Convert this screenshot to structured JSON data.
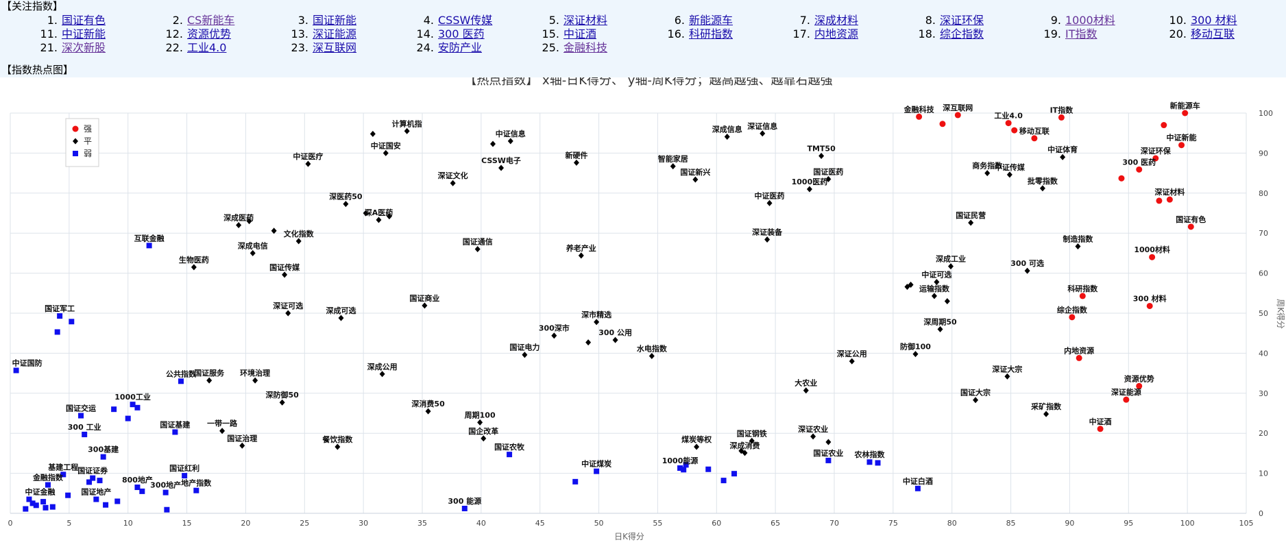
{
  "header": {
    "focus_title": "【关注指数】",
    "heat_title": "【指数热点图】"
  },
  "focus_list": [
    {
      "num": "1.",
      "name": "国证有色"
    },
    {
      "num": "2.",
      "name": "CS新能车",
      "visited": true
    },
    {
      "num": "3.",
      "name": "国证新能"
    },
    {
      "num": "4.",
      "name": "CSSW传媒"
    },
    {
      "num": "5.",
      "name": "深证材料"
    },
    {
      "num": "6.",
      "name": "新能源车"
    },
    {
      "num": "7.",
      "name": "深成材料"
    },
    {
      "num": "8.",
      "name": "深证环保"
    },
    {
      "num": "9.",
      "name": "1000材料",
      "visited": true
    },
    {
      "num": "10.",
      "name": "300 材料"
    },
    {
      "num": "11.",
      "name": "中证新能"
    },
    {
      "num": "12.",
      "name": "资源优势"
    },
    {
      "num": "13.",
      "name": "深证能源"
    },
    {
      "num": "14.",
      "name": "300 医药"
    },
    {
      "num": "15.",
      "name": "中证酒"
    },
    {
      "num": "16.",
      "name": "科研指数"
    },
    {
      "num": "17.",
      "name": "内地资源"
    },
    {
      "num": "18.",
      "name": "综企指数"
    },
    {
      "num": "19.",
      "name": "IT指数",
      "visited": true
    },
    {
      "num": "20.",
      "name": "移动互联"
    },
    {
      "num": "21.",
      "name": "深次新股",
      "visited": true
    },
    {
      "num": "22.",
      "name": "工业4.0"
    },
    {
      "num": "23.",
      "name": "深互联网"
    },
    {
      "num": "24.",
      "name": "安防产业"
    },
    {
      "num": "25.",
      "name": "金融科技",
      "visited": true
    }
  ],
  "chart_data": {
    "type": "scatter",
    "title": "【热点指数】 x轴-日K得分、 y轴-周K得分；越高越强、越靠右越强",
    "xlabel": "日K得分",
    "ylabel": "周K得分",
    "xlim": [
      0,
      105
    ],
    "ylim": [
      0,
      100
    ],
    "xticks": [
      0,
      5,
      10,
      15,
      20,
      25,
      30,
      35,
      40,
      45,
      50,
      55,
      60,
      65,
      70,
      75,
      80,
      85,
      90,
      95,
      100,
      105
    ],
    "yticks": [
      0,
      10,
      20,
      30,
      40,
      50,
      60,
      70,
      80,
      90,
      100
    ],
    "grid": true,
    "legend_position": "top-left",
    "colors": {
      "强": "#ee1111",
      "平": "#000000",
      "弱": "#1010ee"
    },
    "series": [
      {
        "name": "强",
        "marker": "circle",
        "points": [
          {
            "x": 77.2,
            "y": 99.1,
            "label": "金融科技"
          },
          {
            "x": 79.2,
            "y": 97.3,
            "label": ""
          },
          {
            "x": 80.5,
            "y": 99.5,
            "label": "深互联网"
          },
          {
            "x": 84.8,
            "y": 97.5,
            "label": "工业4.0"
          },
          {
            "x": 85.3,
            "y": 95.7,
            "label": ""
          },
          {
            "x": 87.0,
            "y": 93.7,
            "label": "移动互联"
          },
          {
            "x": 89.3,
            "y": 98.9,
            "label": "IT指数"
          },
          {
            "x": 99.8,
            "y": 100.0,
            "label": "新能源车"
          },
          {
            "x": 98.0,
            "y": 97.0,
            "label": ""
          },
          {
            "x": 99.5,
            "y": 92.0,
            "label": "中证新能"
          },
          {
            "x": 97.3,
            "y": 88.7,
            "label": "深证环保"
          },
          {
            "x": 94.4,
            "y": 83.7,
            "label": ""
          },
          {
            "x": 95.9,
            "y": 85.9,
            "label": "300 医药"
          },
          {
            "x": 97.6,
            "y": 78.1,
            "label": ""
          },
          {
            "x": 98.5,
            "y": 78.4,
            "label": "深证材料"
          },
          {
            "x": 100.3,
            "y": 71.6,
            "label": "国证有色"
          },
          {
            "x": 97.0,
            "y": 64.0,
            "label": "1000材料"
          },
          {
            "x": 91.1,
            "y": 54.3,
            "label": "科研指数"
          },
          {
            "x": 96.8,
            "y": 51.8,
            "label": "300 材料"
          },
          {
            "x": 90.2,
            "y": 49.0,
            "label": "综企指数"
          },
          {
            "x": 90.8,
            "y": 38.8,
            "label": "内地资源"
          },
          {
            "x": 95.9,
            "y": 31.8,
            "label": "资源优势"
          },
          {
            "x": 94.8,
            "y": 28.4,
            "label": "深证能源"
          },
          {
            "x": 92.6,
            "y": 21.1,
            "label": "中证酒"
          }
        ]
      },
      {
        "name": "平",
        "marker": "diamond",
        "points": [
          {
            "x": 30.8,
            "y": 94.8,
            "label": ""
          },
          {
            "x": 33.7,
            "y": 95.5,
            "label": "计算机指"
          },
          {
            "x": 31.9,
            "y": 90.0,
            "label": "中证国安"
          },
          {
            "x": 42.5,
            "y": 93.0,
            "label": "中证信息"
          },
          {
            "x": 41.0,
            "y": 92.3,
            "label": ""
          },
          {
            "x": 41.7,
            "y": 86.3,
            "label": "CSSW电子"
          },
          {
            "x": 37.6,
            "y": 82.5,
            "label": "深证文化"
          },
          {
            "x": 25.3,
            "y": 87.3,
            "label": "中证医疗"
          },
          {
            "x": 48.1,
            "y": 87.6,
            "label": "新硬件"
          },
          {
            "x": 56.3,
            "y": 86.7,
            "label": "智能家居"
          },
          {
            "x": 58.2,
            "y": 83.4,
            "label": "国证新兴"
          },
          {
            "x": 60.9,
            "y": 94.1,
            "label": "深成信息"
          },
          {
            "x": 63.9,
            "y": 94.9,
            "label": "深证信息"
          },
          {
            "x": 68.9,
            "y": 89.3,
            "label": "TMT50"
          },
          {
            "x": 67.9,
            "y": 81.0,
            "label": "1000医药"
          },
          {
            "x": 69.5,
            "y": 83.5,
            "label": "国证医药"
          },
          {
            "x": 64.5,
            "y": 77.5,
            "label": "中证医药"
          },
          {
            "x": 28.5,
            "y": 77.3,
            "label": "深医药50"
          },
          {
            "x": 30.2,
            "y": 75.0,
            "label": ""
          },
          {
            "x": 31.3,
            "y": 73.3,
            "label": "深A医药"
          },
          {
            "x": 32.2,
            "y": 74.2,
            "label": ""
          },
          {
            "x": 19.4,
            "y": 72.0,
            "label": "深成医药"
          },
          {
            "x": 20.3,
            "y": 73.0,
            "label": ""
          },
          {
            "x": 22.4,
            "y": 70.6,
            "label": ""
          },
          {
            "x": 24.5,
            "y": 68.0,
            "label": "文化指数"
          },
          {
            "x": 20.6,
            "y": 65.0,
            "label": "深成电信"
          },
          {
            "x": 15.6,
            "y": 61.5,
            "label": "生物医药"
          },
          {
            "x": 23.3,
            "y": 59.6,
            "label": "国证传媒"
          },
          {
            "x": 39.7,
            "y": 66.0,
            "label": "国证通信"
          },
          {
            "x": 48.5,
            "y": 64.4,
            "label": "养老产业"
          },
          {
            "x": 64.3,
            "y": 68.4,
            "label": "深证装备"
          },
          {
            "x": 81.6,
            "y": 72.6,
            "label": "国证民营"
          },
          {
            "x": 87.7,
            "y": 81.2,
            "label": "批零指数"
          },
          {
            "x": 84.9,
            "y": 84.6,
            "label": "中证传媒"
          },
          {
            "x": 89.4,
            "y": 89.0,
            "label": "中证体育"
          },
          {
            "x": 83.0,
            "y": 85.0,
            "label": "商务指数"
          },
          {
            "x": 90.7,
            "y": 66.7,
            "label": "制造指数"
          },
          {
            "x": 86.4,
            "y": 60.6,
            "label": "300 可选"
          },
          {
            "x": 79.9,
            "y": 61.7,
            "label": "深成工业"
          },
          {
            "x": 78.7,
            "y": 57.8,
            "label": "中证可选"
          },
          {
            "x": 76.2,
            "y": 56.6,
            "label": ""
          },
          {
            "x": 76.5,
            "y": 57.1,
            "label": ""
          },
          {
            "x": 78.5,
            "y": 54.3,
            "label": "运输指数"
          },
          {
            "x": 79.6,
            "y": 53.0,
            "label": ""
          },
          {
            "x": 35.2,
            "y": 51.9,
            "label": "国证商业"
          },
          {
            "x": 23.6,
            "y": 50.0,
            "label": "深证可选"
          },
          {
            "x": 28.1,
            "y": 48.8,
            "label": "深成可选"
          },
          {
            "x": 49.8,
            "y": 47.8,
            "label": "深市精选"
          },
          {
            "x": 46.2,
            "y": 44.4,
            "label": "300深市"
          },
          {
            "x": 51.4,
            "y": 43.3,
            "label": "300 公用"
          },
          {
            "x": 49.1,
            "y": 42.7,
            "label": ""
          },
          {
            "x": 43.7,
            "y": 39.6,
            "label": "国证电力"
          },
          {
            "x": 54.5,
            "y": 39.3,
            "label": "水电指数"
          },
          {
            "x": 79.0,
            "y": 46.0,
            "label": "深周期50"
          },
          {
            "x": 76.9,
            "y": 39.8,
            "label": "防御100"
          },
          {
            "x": 71.5,
            "y": 38.0,
            "label": "深证公用"
          },
          {
            "x": 84.7,
            "y": 34.2,
            "label": "深证大宗"
          },
          {
            "x": 82.0,
            "y": 28.3,
            "label": "国证大宗"
          },
          {
            "x": 67.6,
            "y": 30.7,
            "label": "大农业"
          },
          {
            "x": 88.0,
            "y": 24.8,
            "label": "采矿指数"
          },
          {
            "x": 31.6,
            "y": 34.8,
            "label": "深成公用"
          },
          {
            "x": 16.9,
            "y": 33.2,
            "label": "国证服务"
          },
          {
            "x": 20.8,
            "y": 33.2,
            "label": "环境治理"
          },
          {
            "x": 23.1,
            "y": 27.7,
            "label": "深防御50"
          },
          {
            "x": 35.5,
            "y": 25.5,
            "label": "深消费50"
          },
          {
            "x": 39.9,
            "y": 22.7,
            "label": "周期100"
          },
          {
            "x": 40.2,
            "y": 18.7,
            "label": "国企改革"
          },
          {
            "x": 18.0,
            "y": 20.6,
            "label": "一带一路"
          },
          {
            "x": 19.7,
            "y": 16.9,
            "label": "国证治理"
          },
          {
            "x": 27.8,
            "y": 16.6,
            "label": "餐饮指数"
          },
          {
            "x": 58.3,
            "y": 16.6,
            "label": "煤炭等权"
          },
          {
            "x": 63.0,
            "y": 18.1,
            "label": "国证钢铁"
          },
          {
            "x": 62.1,
            "y": 15.6,
            "label": ""
          },
          {
            "x": 62.4,
            "y": 15.1,
            "label": "深成消费"
          },
          {
            "x": 68.2,
            "y": 19.2,
            "label": "深证农业"
          },
          {
            "x": 69.5,
            "y": 17.8,
            "label": ""
          }
        ]
      },
      {
        "name": "弱",
        "marker": "square",
        "points": [
          {
            "x": 11.8,
            "y": 66.9,
            "label": "互联金融"
          },
          {
            "x": 4.2,
            "y": 49.3,
            "label": "国证军工"
          },
          {
            "x": 5.2,
            "y": 47.9,
            "label": ""
          },
          {
            "x": 4.0,
            "y": 45.3,
            "label": ""
          },
          {
            "x": 0.5,
            "y": 35.7,
            "label": "中证国防"
          },
          {
            "x": 14.5,
            "y": 33.0,
            "label": "公共指数"
          },
          {
            "x": 6.0,
            "y": 24.4,
            "label": "国证交运"
          },
          {
            "x": 10.4,
            "y": 27.2,
            "label": "1000工业"
          },
          {
            "x": 10.8,
            "y": 26.4,
            "label": ""
          },
          {
            "x": 8.8,
            "y": 26.0,
            "label": ""
          },
          {
            "x": 10.0,
            "y": 23.7,
            "label": ""
          },
          {
            "x": 6.3,
            "y": 19.7,
            "label": "300 工业"
          },
          {
            "x": 14.0,
            "y": 20.3,
            "label": "国证基建"
          },
          {
            "x": 7.9,
            "y": 14.1,
            "label": "300基建"
          },
          {
            "x": 4.5,
            "y": 9.7,
            "label": "基建工程"
          },
          {
            "x": 7.0,
            "y": 8.8,
            "label": "国证证券"
          },
          {
            "x": 6.7,
            "y": 7.8,
            "label": ""
          },
          {
            "x": 7.6,
            "y": 8.2,
            "label": ""
          },
          {
            "x": 14.8,
            "y": 9.4,
            "label": "国证红利"
          },
          {
            "x": 10.8,
            "y": 6.5,
            "label": "800地产"
          },
          {
            "x": 11.2,
            "y": 5.5,
            "label": ""
          },
          {
            "x": 15.8,
            "y": 5.7,
            "label": "地产指数"
          },
          {
            "x": 13.2,
            "y": 5.2,
            "label": "300地产"
          },
          {
            "x": 13.3,
            "y": 0.9,
            "label": ""
          },
          {
            "x": 3.2,
            "y": 7.1,
            "label": "金融指数"
          },
          {
            "x": 4.9,
            "y": 4.5,
            "label": ""
          },
          {
            "x": 7.3,
            "y": 3.5,
            "label": "国证地产"
          },
          {
            "x": 8.1,
            "y": 2.1,
            "label": ""
          },
          {
            "x": 9.1,
            "y": 3.0,
            "label": ""
          },
          {
            "x": 1.6,
            "y": 3.5,
            "label": "中证金融"
          },
          {
            "x": 1.9,
            "y": 2.5,
            "label": ""
          },
          {
            "x": 2.2,
            "y": 2.0,
            "label": ""
          },
          {
            "x": 2.8,
            "y": 2.9,
            "label": ""
          },
          {
            "x": 1.3,
            "y": 1.1,
            "label": ""
          },
          {
            "x": 3.0,
            "y": 1.4,
            "label": ""
          },
          {
            "x": 3.6,
            "y": 1.6,
            "label": ""
          },
          {
            "x": 38.6,
            "y": 1.2,
            "label": "300 能源"
          },
          {
            "x": 42.4,
            "y": 14.7,
            "label": "国证农牧"
          },
          {
            "x": 48.0,
            "y": 7.9,
            "label": ""
          },
          {
            "x": 49.8,
            "y": 10.5,
            "label": "中证煤炭"
          },
          {
            "x": 56.9,
            "y": 11.3,
            "label": "1000能源"
          },
          {
            "x": 57.2,
            "y": 10.9,
            "label": ""
          },
          {
            "x": 57.4,
            "y": 12.1,
            "label": ""
          },
          {
            "x": 59.3,
            "y": 11.0,
            "label": ""
          },
          {
            "x": 60.6,
            "y": 8.2,
            "label": ""
          },
          {
            "x": 61.5,
            "y": 9.9,
            "label": ""
          },
          {
            "x": 69.5,
            "y": 13.2,
            "label": "国证农业"
          },
          {
            "x": 73.0,
            "y": 12.8,
            "label": "农林指数"
          },
          {
            "x": 73.7,
            "y": 12.6,
            "label": ""
          },
          {
            "x": 77.1,
            "y": 6.2,
            "label": "中证白酒"
          }
        ]
      }
    ]
  }
}
